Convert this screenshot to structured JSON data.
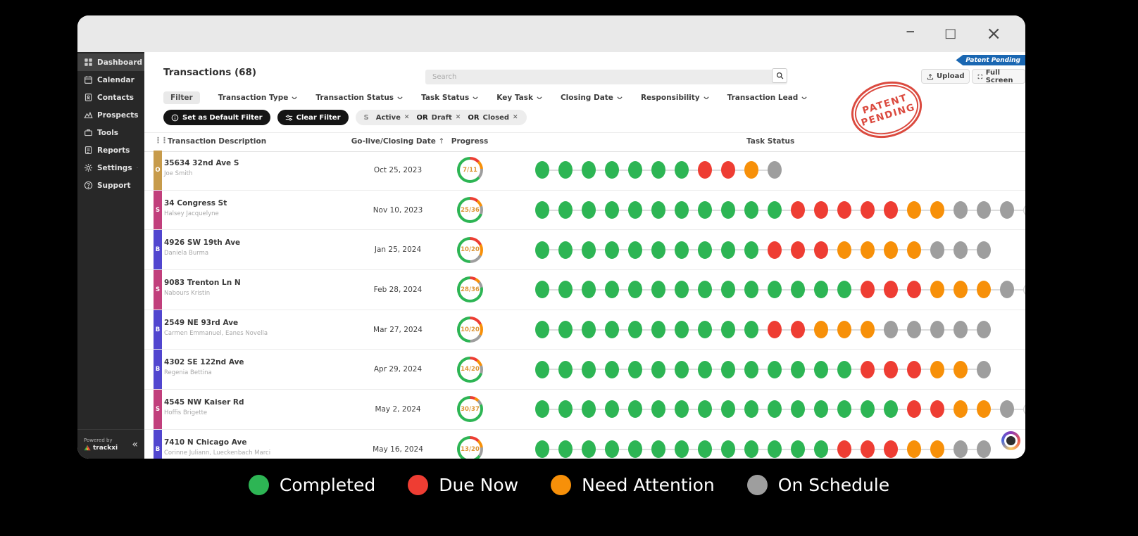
{
  "titlebar": {
    "minimize": "–",
    "maximize": "□",
    "close": "×"
  },
  "ribbon": {
    "label": "Patent Pending",
    "color": "#1a67b2"
  },
  "stamp": {
    "line1": "PATENT",
    "line2": "PENDING",
    "color": "#d8372b"
  },
  "sidebar": {
    "items": [
      {
        "label": "Dashboard",
        "icon": "dashboard-grid",
        "active": true
      },
      {
        "label": "Calendar",
        "icon": "calendar"
      },
      {
        "label": "Contacts",
        "icon": "contacts-book"
      },
      {
        "label": "Prospects",
        "icon": "prospects-chart"
      },
      {
        "label": "Tools",
        "icon": "tools-briefcase"
      },
      {
        "label": "Reports",
        "icon": "reports-doc"
      },
      {
        "label": "Settings",
        "icon": "settings-gear",
        "chevron": true
      },
      {
        "label": "Support",
        "icon": "support-question"
      }
    ],
    "powered_by": "Powered by",
    "brand": "trackxi",
    "collapse_icon": "«"
  },
  "header": {
    "title": "Transactions (68)",
    "search_placeholder": "Search",
    "upload_label": "Upload",
    "fullscreen_label": "Full Screen"
  },
  "filters": {
    "filter_label": "Filter",
    "dropdowns": [
      "Transaction Type",
      "Transaction Status",
      "Task Status",
      "Key Task",
      "Closing Date",
      "Responsibility",
      "Transaction Lead"
    ],
    "set_default_label": "Set as Default Filter",
    "clear_label": "Clear Filter",
    "chip_key": "S",
    "chips": [
      {
        "label": "Active"
      },
      {
        "prefix": "OR",
        "label": "Draft"
      },
      {
        "prefix": "OR",
        "label": "Closed"
      }
    ]
  },
  "table": {
    "headers": {
      "description": "Transaction Description",
      "date": "Go-live/Closing Date",
      "sort_arrow": "↑",
      "progress": "Progress",
      "task_status": "Task Status"
    },
    "rows": [
      {
        "tag": "O",
        "tag_color": "#c79b4b",
        "address": "35634 32nd Ave S",
        "people": "Joe Smith",
        "date": "Oct 25, 2023",
        "progress_label": "7/11",
        "done": 7,
        "total": 11,
        "dots": "cccccccddas",
        "more": false
      },
      {
        "tag": "S",
        "tag_color": "#c13f7c",
        "address": "34 Congress St",
        "people": "Halsey Jacquelyne",
        "date": "Nov 10, 2023",
        "progress_label": "25/36",
        "done": 25,
        "total": 36,
        "dots": "cccccccccccdddddaasss",
        "more": true
      },
      {
        "tag": "B",
        "tag_color": "#5146cf",
        "address": "4926 SW 19th Ave",
        "people": "Daniela Burma",
        "date": "Jan 25, 2024",
        "progress_label": "10/20",
        "done": 10,
        "total": 20,
        "dots": "ccccccccccdddaaaasss",
        "more": false
      },
      {
        "tag": "S",
        "tag_color": "#c13f7c",
        "address": "9083 Trenton Ln N",
        "people": "Nabours Kristin",
        "date": "Feb 28, 2024",
        "progress_label": "28/36",
        "done": 28,
        "total": 36,
        "dots": "ccccccccccccccdddaaas",
        "more": true
      },
      {
        "tag": "B",
        "tag_color": "#5146cf",
        "address": "2549 NE 93rd Ave",
        "people": "Carmen Emmanuel, Eanes Novella",
        "date": "Mar 27, 2024",
        "progress_label": "10/20",
        "done": 10,
        "total": 20,
        "dots": "ccccccccccddaaasssss",
        "more": false
      },
      {
        "tag": "B",
        "tag_color": "#5146cf",
        "address": "4302 SE 122nd Ave",
        "people": "Regenia Bettina",
        "date": "Apr 29, 2024",
        "progress_label": "14/20",
        "done": 14,
        "total": 20,
        "dots": "ccccccccccccccdddaas",
        "more": false
      },
      {
        "tag": "S",
        "tag_color": "#c13f7c",
        "address": "4545 NW Kaiser Rd",
        "people": "Hoffis Brigette",
        "date": "May 2, 2024",
        "progress_label": "30/37",
        "done": 30,
        "total": 37,
        "dots": "ccccccccccccccccddaas",
        "more": true
      },
      {
        "tag": "B",
        "tag_color": "#5146cf",
        "address": "7410 N Chicago Ave",
        "people": "Corinne Juliann, Lueckenbach Marci",
        "date": "May 16, 2024",
        "progress_label": "13/20",
        "done": 13,
        "total": 20,
        "dots": "cccccccccccccdddaass",
        "more": false
      }
    ]
  },
  "statuses": {
    "c": {
      "name": "Completed",
      "color": "#2db554"
    },
    "d": {
      "name": "Due Now",
      "color": "#ee3d33"
    },
    "a": {
      "name": "Need Attention",
      "color": "#f79009"
    },
    "s": {
      "name": "On Schedule",
      "color": "#9e9e9e"
    }
  },
  "legend": [
    {
      "status": "c",
      "label": "Completed"
    },
    {
      "status": "d",
      "label": "Due Now"
    },
    {
      "status": "a",
      "label": "Need Attention"
    },
    {
      "status": "s",
      "label": "On Schedule"
    }
  ]
}
